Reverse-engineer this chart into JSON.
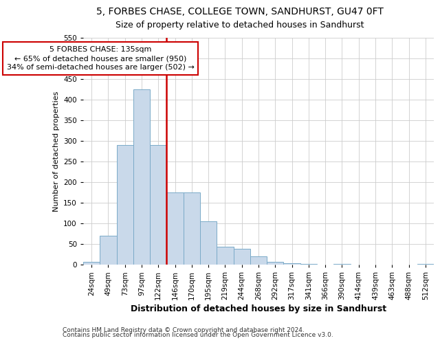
{
  "title1": "5, FORBES CHASE, COLLEGE TOWN, SANDHURST, GU47 0FT",
  "title2": "Size of property relative to detached houses in Sandhurst",
  "xlabel": "Distribution of detached houses by size in Sandhurst",
  "ylabel": "Number of detached properties",
  "footnote1": "Contains HM Land Registry data © Crown copyright and database right 2024.",
  "footnote2": "Contains public sector information licensed under the Open Government Licence v3.0.",
  "bar_labels": [
    "24sqm",
    "49sqm",
    "73sqm",
    "97sqm",
    "122sqm",
    "146sqm",
    "170sqm",
    "195sqm",
    "219sqm",
    "244sqm",
    "268sqm",
    "292sqm",
    "317sqm",
    "341sqm",
    "366sqm",
    "390sqm",
    "414sqm",
    "439sqm",
    "463sqm",
    "488sqm",
    "512sqm"
  ],
  "bar_values": [
    7,
    70,
    290,
    425,
    290,
    175,
    175,
    105,
    43,
    38,
    20,
    7,
    4,
    2,
    0,
    2,
    0,
    0,
    0,
    0,
    2
  ],
  "bar_color": "#c9d9ea",
  "bar_edge_color": "#7aaac8",
  "red_line_color": "#cc0000",
  "annotation_line1": "5 FORBES CHASE: 135sqm",
  "annotation_line2": "← 65% of detached houses are smaller (950)",
  "annotation_line3": "34% of semi-detached houses are larger (502) →",
  "annotation_box_color": "#cc0000",
  "red_line_x": 4.5,
  "ylim": [
    0,
    550
  ],
  "yticks": [
    0,
    50,
    100,
    150,
    200,
    250,
    300,
    350,
    400,
    450,
    500,
    550
  ],
  "background_color": "#ffffff",
  "grid_color": "#cccccc",
  "title1_fontsize": 10,
  "title2_fontsize": 9,
  "xlabel_fontsize": 9,
  "ylabel_fontsize": 8,
  "tick_fontsize": 7.5,
  "annotation_fontsize": 8,
  "footnote_fontsize": 6.5
}
